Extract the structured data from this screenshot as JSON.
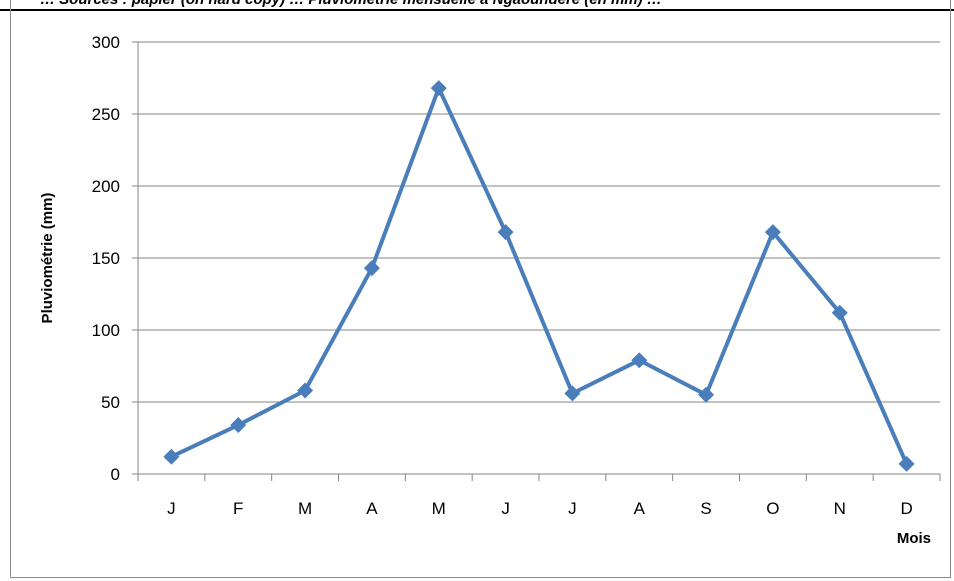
{
  "header": {
    "text": "… Sources : papier (on hard copy) … Pluviométrie mensuelle à Ngaoundéré (en mm) … "
  },
  "chart_data": {
    "type": "line",
    "categories": [
      "J",
      "F",
      "M",
      "A",
      "M",
      "J",
      "J",
      "A",
      "S",
      "O",
      "N",
      "D"
    ],
    "series": [
      {
        "values": [
          12,
          34,
          58,
          143,
          268,
          168,
          56,
          79,
          55,
          168,
          112,
          7
        ],
        "color": "#4a7ebb",
        "marker": "diamond"
      }
    ],
    "ylim": [
      0,
      300
    ],
    "yticks": [
      0,
      50,
      100,
      150,
      200,
      250,
      300
    ],
    "ylabel": "Pluviométrie (mm)",
    "xlabel": "Mois",
    "grid": "horizontal",
    "legend": "none"
  }
}
